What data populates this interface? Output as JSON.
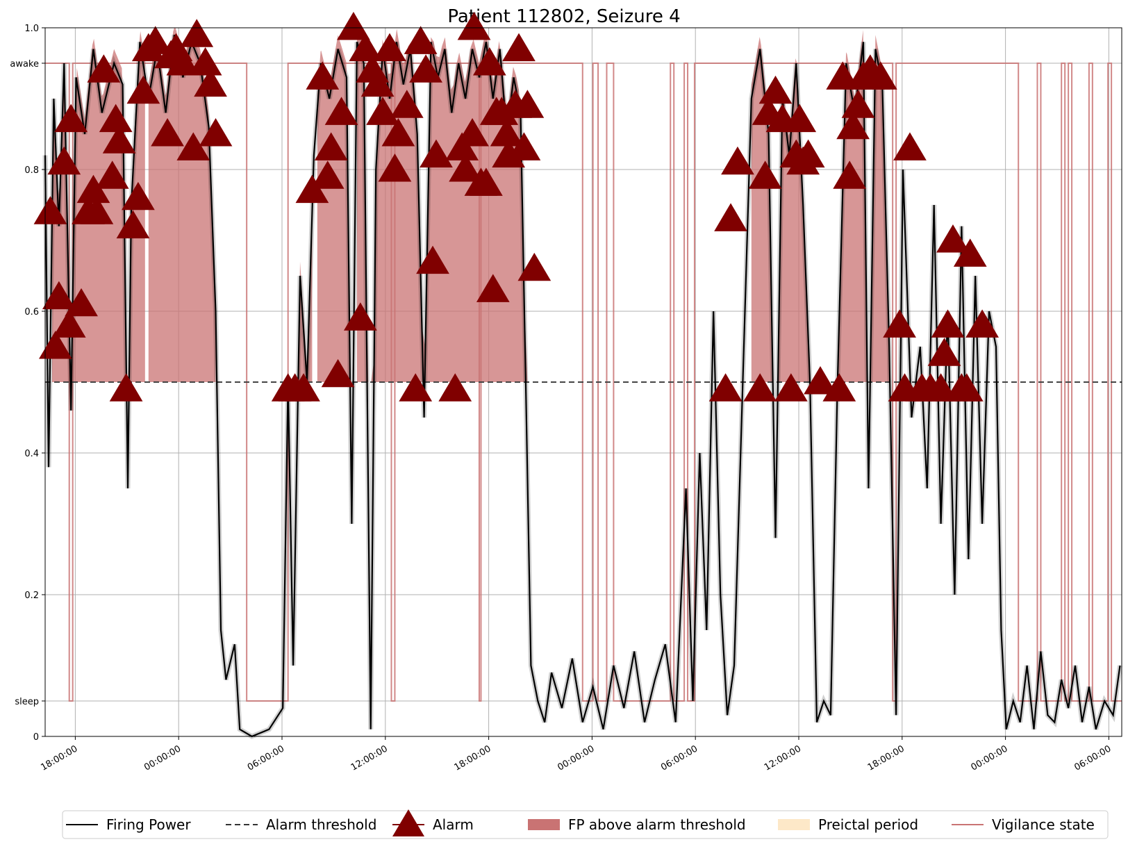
{
  "chart_data": {
    "type": "line",
    "title": "Patient 112802, Seizure 4",
    "x_tick_labels": [
      "18:00:00",
      "00:00:00",
      "06:00:00",
      "12:00:00",
      "18:00:00",
      "00:00:00",
      "06:00:00",
      "12:00:00",
      "18:00:00",
      "00:00:00",
      "06:00:00"
    ],
    "x_ticks_hours": [
      1.75,
      7.75,
      13.75,
      19.75,
      25.75,
      31.75,
      37.75,
      43.75,
      49.75,
      55.75,
      61.75
    ],
    "xlim_hours": [
      0,
      62.5
    ],
    "x_origin_time": "16:15:00",
    "ylim": [
      0,
      1.0
    ],
    "y_ticks": [
      {
        "value": 0,
        "label": "0"
      },
      {
        "value": 0.05,
        "label": "sleep"
      },
      {
        "value": 0.2,
        "label": "0.2"
      },
      {
        "value": 0.4,
        "label": "0.4"
      },
      {
        "value": 0.6,
        "label": "0.6"
      },
      {
        "value": 0.8,
        "label": "0.8"
      },
      {
        "value": 0.95,
        "label": "awake"
      },
      {
        "value": 1.0,
        "label": "1.0"
      }
    ],
    "grid": true,
    "alarm_threshold": 0.5,
    "legend": {
      "placement": "bottom",
      "entries": [
        {
          "label": "Firing Power",
          "kind": "line",
          "color": "#000000"
        },
        {
          "label": "Alarm threshold",
          "kind": "dashed",
          "color": "#333333"
        },
        {
          "label": "Alarm",
          "kind": "triangle",
          "color": "#800000"
        },
        {
          "label": "FP above alarm threshold",
          "kind": "patch",
          "color": "#c97373"
        },
        {
          "label": "Preictal period",
          "kind": "patch",
          "color": "#fde8c8"
        },
        {
          "label": "Vigilance state",
          "kind": "line",
          "color": "#c97373"
        }
      ]
    },
    "series": [
      {
        "name": "Firing Power",
        "color": "#000000",
        "points": [
          [
            0,
            0.82
          ],
          [
            0.2,
            0.38
          ],
          [
            0.5,
            0.9
          ],
          [
            0.8,
            0.72
          ],
          [
            1.1,
            0.95
          ],
          [
            1.5,
            0.46
          ],
          [
            1.8,
            0.93
          ],
          [
            2.3,
            0.85
          ],
          [
            2.8,
            0.97
          ],
          [
            3.3,
            0.88
          ],
          [
            4.0,
            0.95
          ],
          [
            4.5,
            0.92
          ],
          [
            4.8,
            0.35
          ],
          [
            5.0,
            0.75
          ],
          [
            5.5,
            0.98
          ],
          [
            6.0,
            0.9
          ],
          [
            6.5,
            0.97
          ],
          [
            7.0,
            0.88
          ],
          [
            7.5,
            0.99
          ],
          [
            8.0,
            0.93
          ],
          [
            8.5,
            0.98
          ],
          [
            9.0,
            0.95
          ],
          [
            9.5,
            0.86
          ],
          [
            9.9,
            0.6
          ],
          [
            10.2,
            0.15
          ],
          [
            10.5,
            0.08
          ],
          [
            11.0,
            0.13
          ],
          [
            11.3,
            0.01
          ],
          [
            12.0,
            0.0
          ],
          [
            13.0,
            0.01
          ],
          [
            13.8,
            0.04
          ],
          [
            14.1,
            0.5
          ],
          [
            14.4,
            0.1
          ],
          [
            14.8,
            0.65
          ],
          [
            15.2,
            0.5
          ],
          [
            15.6,
            0.82
          ],
          [
            16.0,
            0.95
          ],
          [
            16.5,
            0.9
          ],
          [
            17.0,
            0.97
          ],
          [
            17.5,
            0.93
          ],
          [
            17.8,
            0.3
          ],
          [
            18.1,
            0.98
          ],
          [
            18.5,
            0.95
          ],
          [
            18.9,
            0.01
          ],
          [
            19.2,
            0.8
          ],
          [
            19.6,
            0.97
          ],
          [
            20.0,
            0.9
          ],
          [
            20.4,
            0.98
          ],
          [
            20.8,
            0.92
          ],
          [
            21.2,
            0.97
          ],
          [
            21.6,
            0.85
          ],
          [
            22.0,
            0.45
          ],
          [
            22.4,
            0.98
          ],
          [
            22.8,
            0.93
          ],
          [
            23.2,
            0.97
          ],
          [
            23.6,
            0.88
          ],
          [
            24.0,
            0.95
          ],
          [
            24.4,
            0.9
          ],
          [
            24.8,
            0.97
          ],
          [
            25.2,
            0.93
          ],
          [
            25.6,
            0.98
          ],
          [
            26.0,
            0.9
          ],
          [
            26.4,
            0.97
          ],
          [
            26.8,
            0.85
          ],
          [
            27.2,
            0.93
          ],
          [
            27.6,
            0.88
          ],
          [
            27.9,
            0.5
          ],
          [
            28.2,
            0.1
          ],
          [
            28.6,
            0.05
          ],
          [
            29.0,
            0.02
          ],
          [
            29.4,
            0.09
          ],
          [
            30.0,
            0.04
          ],
          [
            30.6,
            0.11
          ],
          [
            31.2,
            0.02
          ],
          [
            31.8,
            0.07
          ],
          [
            32.4,
            0.01
          ],
          [
            33.0,
            0.1
          ],
          [
            33.6,
            0.04
          ],
          [
            34.2,
            0.12
          ],
          [
            34.8,
            0.02
          ],
          [
            35.4,
            0.08
          ],
          [
            36.0,
            0.13
          ],
          [
            36.6,
            0.02
          ],
          [
            37.2,
            0.35
          ],
          [
            37.6,
            0.05
          ],
          [
            38.0,
            0.4
          ],
          [
            38.4,
            0.15
          ],
          [
            38.8,
            0.6
          ],
          [
            39.2,
            0.2
          ],
          [
            39.6,
            0.03
          ],
          [
            40.0,
            0.1
          ],
          [
            40.5,
            0.5
          ],
          [
            41.0,
            0.9
          ],
          [
            41.5,
            0.97
          ],
          [
            42.0,
            0.85
          ],
          [
            42.4,
            0.28
          ],
          [
            42.8,
            0.9
          ],
          [
            43.2,
            0.82
          ],
          [
            43.6,
            0.95
          ],
          [
            44.0,
            0.75
          ],
          [
            44.4,
            0.5
          ],
          [
            44.8,
            0.02
          ],
          [
            45.2,
            0.05
          ],
          [
            45.6,
            0.03
          ],
          [
            46.0,
            0.5
          ],
          [
            46.5,
            0.95
          ],
          [
            47.0,
            0.88
          ],
          [
            47.5,
            0.98
          ],
          [
            47.8,
            0.35
          ],
          [
            48.2,
            0.97
          ],
          [
            48.6,
            0.92
          ],
          [
            49.0,
            0.55
          ],
          [
            49.4,
            0.03
          ],
          [
            49.8,
            0.8
          ],
          [
            50.3,
            0.45
          ],
          [
            50.8,
            0.55
          ],
          [
            51.2,
            0.35
          ],
          [
            51.6,
            0.75
          ],
          [
            52.0,
            0.3
          ],
          [
            52.4,
            0.6
          ],
          [
            52.8,
            0.2
          ],
          [
            53.2,
            0.72
          ],
          [
            53.6,
            0.25
          ],
          [
            54.0,
            0.65
          ],
          [
            54.4,
            0.3
          ],
          [
            54.8,
            0.6
          ],
          [
            55.2,
            0.55
          ],
          [
            55.5,
            0.15
          ],
          [
            55.8,
            0.01
          ],
          [
            56.2,
            0.05
          ],
          [
            56.6,
            0.02
          ],
          [
            57.0,
            0.1
          ],
          [
            57.4,
            0.01
          ],
          [
            57.8,
            0.12
          ],
          [
            58.2,
            0.03
          ],
          [
            58.6,
            0.02
          ],
          [
            59.0,
            0.08
          ],
          [
            59.4,
            0.04
          ],
          [
            59.8,
            0.1
          ],
          [
            60.2,
            0.02
          ],
          [
            60.6,
            0.07
          ],
          [
            61.0,
            0.01
          ],
          [
            61.5,
            0.05
          ],
          [
            62.0,
            0.03
          ],
          [
            62.4,
            0.1
          ]
        ]
      },
      {
        "name": "Vigilance state",
        "color": "#c97373",
        "segments": [
          [
            0,
            0.95
          ],
          [
            1.4,
            0.05
          ],
          [
            1.6,
            0.95
          ],
          [
            11.7,
            0.05
          ],
          [
            14.1,
            0.95
          ],
          [
            20.1,
            0.05
          ],
          [
            20.3,
            0.95
          ],
          [
            25.2,
            0.05
          ],
          [
            25.3,
            0.95
          ],
          [
            31.2,
            0.05
          ],
          [
            31.8,
            0.95
          ],
          [
            32.1,
            0.05
          ],
          [
            32.6,
            0.95
          ],
          [
            33.0,
            0.05
          ],
          [
            36.3,
            0.95
          ],
          [
            36.5,
            0.05
          ],
          [
            37.1,
            0.95
          ],
          [
            37.3,
            0.05
          ],
          [
            37.7,
            0.95
          ],
          [
            49.2,
            0.05
          ],
          [
            49.4,
            0.95
          ],
          [
            56.5,
            0.05
          ],
          [
            57.6,
            0.95
          ],
          [
            57.8,
            0.05
          ],
          [
            59.0,
            0.95
          ],
          [
            59.2,
            0.05
          ],
          [
            59.4,
            0.95
          ],
          [
            59.6,
            0.05
          ],
          [
            60.6,
            0.95
          ],
          [
            60.8,
            0.05
          ],
          [
            61.7,
            0.95
          ],
          [
            61.9,
            0.05
          ],
          [
            62.5,
            0.05
          ]
        ]
      }
    ],
    "above_threshold_regions": [
      [
        0.4,
        5.8
      ],
      [
        6.0,
        9.9
      ],
      [
        14.1,
        15.5
      ],
      [
        15.8,
        17.7
      ],
      [
        18.1,
        28.0
      ],
      [
        39.5,
        40.3
      ],
      [
        41.0,
        45.8
      ],
      [
        46.0,
        49.3
      ]
    ],
    "alarms": [
      [
        0.3,
        0.74
      ],
      [
        0.6,
        0.55
      ],
      [
        0.8,
        0.62
      ],
      [
        1.1,
        0.81
      ],
      [
        1.4,
        0.58
      ],
      [
        1.5,
        0.87
      ],
      [
        2.1,
        0.61
      ],
      [
        2.5,
        0.74
      ],
      [
        2.8,
        0.77
      ],
      [
        3.0,
        0.74
      ],
      [
        3.4,
        0.94
      ],
      [
        3.9,
        0.79
      ],
      [
        4.1,
        0.87
      ],
      [
        4.3,
        0.84
      ],
      [
        4.7,
        0.49
      ],
      [
        5.1,
        0.72
      ],
      [
        5.4,
        0.76
      ],
      [
        5.7,
        0.91
      ],
      [
        6.0,
        0.97
      ],
      [
        6.4,
        0.98
      ],
      [
        7.1,
        0.85
      ],
      [
        7.3,
        0.96
      ],
      [
        7.6,
        0.97
      ],
      [
        8.0,
        0.95
      ],
      [
        8.6,
        0.83
      ],
      [
        8.8,
        0.99
      ],
      [
        9.3,
        0.95
      ],
      [
        9.6,
        0.92
      ],
      [
        9.9,
        0.85
      ],
      [
        14.1,
        0.49
      ],
      [
        14.5,
        0.49
      ],
      [
        15.0,
        0.49
      ],
      [
        15.5,
        0.77
      ],
      [
        16.1,
        0.93
      ],
      [
        16.4,
        0.79
      ],
      [
        16.6,
        0.83
      ],
      [
        17.0,
        0.51
      ],
      [
        17.2,
        0.88
      ],
      [
        17.9,
        1.0
      ],
      [
        18.3,
        0.59
      ],
      [
        18.6,
        0.97
      ],
      [
        19.0,
        0.94
      ],
      [
        19.3,
        0.92
      ],
      [
        19.6,
        0.88
      ],
      [
        20.0,
        0.97
      ],
      [
        20.3,
        0.8
      ],
      [
        20.5,
        0.85
      ],
      [
        21.0,
        0.89
      ],
      [
        21.5,
        0.49
      ],
      [
        21.8,
        0.98
      ],
      [
        22.1,
        0.94
      ],
      [
        22.5,
        0.67
      ],
      [
        22.7,
        0.82
      ],
      [
        23.8,
        0.49
      ],
      [
        24.2,
        0.83
      ],
      [
        24.4,
        0.8
      ],
      [
        24.8,
        0.85
      ],
      [
        24.9,
        1.0
      ],
      [
        25.3,
        0.78
      ],
      [
        25.6,
        0.78
      ],
      [
        25.8,
        0.95
      ],
      [
        26.0,
        0.63
      ],
      [
        26.2,
        0.88
      ],
      [
        26.5,
        0.88
      ],
      [
        26.8,
        0.85
      ],
      [
        26.9,
        0.82
      ],
      [
        27.3,
        0.89
      ],
      [
        27.5,
        0.97
      ],
      [
        27.8,
        0.83
      ],
      [
        28.0,
        0.89
      ],
      [
        28.4,
        0.66
      ],
      [
        39.5,
        0.49
      ],
      [
        39.8,
        0.73
      ],
      [
        40.2,
        0.81
      ],
      [
        41.5,
        0.49
      ],
      [
        41.8,
        0.79
      ],
      [
        42.0,
        0.88
      ],
      [
        42.4,
        0.91
      ],
      [
        42.8,
        0.87
      ],
      [
        43.3,
        0.49
      ],
      [
        43.6,
        0.82
      ],
      [
        43.8,
        0.87
      ],
      [
        44.0,
        0.81
      ],
      [
        44.3,
        0.82
      ],
      [
        45.0,
        0.5
      ],
      [
        46.1,
        0.49
      ],
      [
        46.3,
        0.93
      ],
      [
        46.7,
        0.79
      ],
      [
        46.9,
        0.86
      ],
      [
        47.2,
        0.89
      ],
      [
        47.5,
        0.93
      ],
      [
        47.9,
        0.94
      ],
      [
        48.1,
        0.93
      ],
      [
        48.5,
        0.93
      ],
      [
        49.6,
        0.58
      ],
      [
        49.9,
        0.49
      ],
      [
        50.2,
        0.83
      ],
      [
        50.9,
        0.49
      ],
      [
        51.4,
        0.49
      ],
      [
        52.0,
        0.49
      ],
      [
        52.2,
        0.54
      ],
      [
        52.4,
        0.58
      ],
      [
        52.7,
        0.7
      ],
      [
        53.2,
        0.49
      ],
      [
        53.5,
        0.49
      ],
      [
        53.7,
        0.68
      ],
      [
        54.4,
        0.58
      ]
    ]
  }
}
